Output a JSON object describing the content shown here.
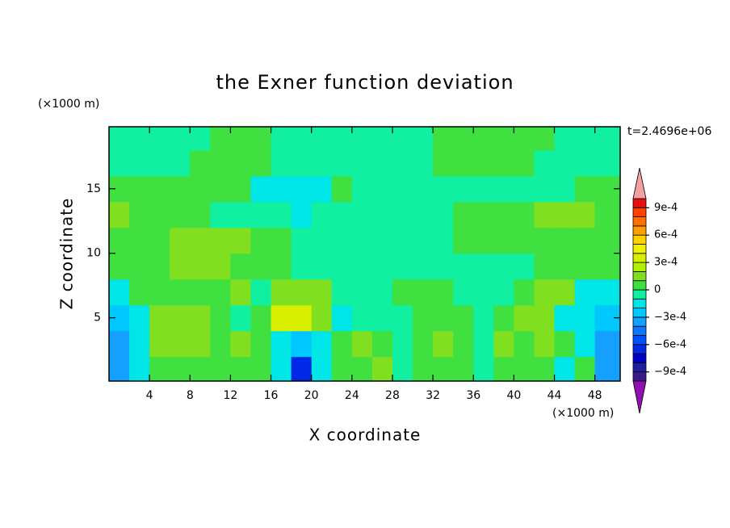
{
  "chart_data": {
    "type": "contour",
    "title": "the Exner function deviation",
    "xlabel": "X coordinate",
    "ylabel": "Z coordinate",
    "x_unit": "(×1000 m)",
    "y_unit": "(×1000 m)",
    "time_label": "t=2.4696e+06",
    "xlim": [
      0,
      50.5
    ],
    "ylim": [
      0.1,
      19.8
    ],
    "xticks": [
      4,
      8,
      12,
      16,
      20,
      24,
      28,
      32,
      36,
      40,
      44,
      48
    ],
    "yticks": [
      5,
      10,
      15
    ],
    "x": [
      1,
      3,
      5,
      7,
      9,
      11,
      13,
      15,
      17,
      19,
      21,
      23,
      25,
      27,
      29,
      31,
      33,
      35,
      37,
      39,
      41,
      43,
      45,
      47,
      49
    ],
    "y": [
      1,
      3,
      5,
      7,
      9,
      11,
      13,
      15,
      17,
      19
    ],
    "z": [
      [
        -0.00035,
        -0.00015,
        5e-05,
        5e-05,
        5e-05,
        5e-05,
        5e-05,
        5e-05,
        -0.00015,
        -0.0007,
        -0.00015,
        5e-05,
        5e-05,
        0.00015,
        -5e-05,
        5e-05,
        5e-05,
        5e-05,
        -5e-05,
        5e-05,
        5e-05,
        5e-05,
        -0.00015,
        5e-05,
        -0.00035
      ],
      [
        -0.00035,
        -0.00015,
        0.00015,
        0.00015,
        0.00015,
        5e-05,
        0.00015,
        5e-05,
        -0.00015,
        -0.00025,
        -0.00015,
        5e-05,
        0.00015,
        5e-05,
        -5e-05,
        5e-05,
        0.00015,
        5e-05,
        -5e-05,
        0.00015,
        5e-05,
        0.00015,
        5e-05,
        -0.00015,
        -0.00035
      ],
      [
        -0.00025,
        -0.00015,
        0.00015,
        0.00015,
        0.00015,
        5e-05,
        -5e-05,
        5e-05,
        0.00035,
        0.00035,
        0.00015,
        -0.00015,
        -5e-05,
        -5e-05,
        -5e-05,
        5e-05,
        5e-05,
        5e-05,
        -5e-05,
        5e-05,
        0.00015,
        0.00015,
        -0.00015,
        -0.00015,
        -0.00025
      ],
      [
        -0.00015,
        5e-05,
        5e-05,
        5e-05,
        5e-05,
        5e-05,
        0.00015,
        -5e-05,
        0.00015,
        0.00015,
        0.00015,
        -5e-05,
        -5e-05,
        -5e-05,
        5e-05,
        5e-05,
        5e-05,
        -5e-05,
        -5e-05,
        -5e-05,
        5e-05,
        0.00015,
        0.00015,
        -0.00015,
        -0.00015
      ],
      [
        5e-05,
        5e-05,
        5e-05,
        0.00015,
        0.00015,
        0.00015,
        5e-05,
        5e-05,
        5e-05,
        -5e-05,
        -5e-05,
        -5e-05,
        -5e-05,
        -5e-05,
        -5e-05,
        -5e-05,
        -5e-05,
        -5e-05,
        -5e-05,
        -5e-05,
        -5e-05,
        5e-05,
        5e-05,
        5e-05,
        5e-05
      ],
      [
        5e-05,
        5e-05,
        5e-05,
        0.00015,
        0.00015,
        0.00015,
        0.00015,
        5e-05,
        5e-05,
        -5e-05,
        -5e-05,
        -5e-05,
        -5e-05,
        -5e-05,
        -5e-05,
        -5e-05,
        -5e-05,
        5e-05,
        5e-05,
        5e-05,
        5e-05,
        5e-05,
        5e-05,
        5e-05,
        5e-05
      ],
      [
        0.00015,
        5e-05,
        5e-05,
        5e-05,
        5e-05,
        -5e-05,
        -5e-05,
        -5e-05,
        -5e-05,
        -0.00015,
        -5e-05,
        -5e-05,
        -5e-05,
        -5e-05,
        -5e-05,
        -5e-05,
        -5e-05,
        5e-05,
        5e-05,
        5e-05,
        5e-05,
        0.00015,
        0.00015,
        0.00015,
        5e-05
      ],
      [
        5e-05,
        5e-05,
        5e-05,
        5e-05,
        5e-05,
        5e-05,
        5e-05,
        -0.00015,
        -0.00015,
        -0.00015,
        -0.00015,
        5e-05,
        -5e-05,
        -5e-05,
        -5e-05,
        -5e-05,
        -5e-05,
        -5e-05,
        -5e-05,
        -5e-05,
        -5e-05,
        -5e-05,
        -5e-05,
        5e-05,
        5e-05
      ],
      [
        -5e-05,
        -5e-05,
        -5e-05,
        -5e-05,
        5e-05,
        5e-05,
        5e-05,
        5e-05,
        -5e-05,
        -5e-05,
        -5e-05,
        -5e-05,
        -5e-05,
        -5e-05,
        -5e-05,
        -5e-05,
        5e-05,
        5e-05,
        5e-05,
        5e-05,
        5e-05,
        -5e-05,
        -5e-05,
        -5e-05,
        -5e-05
      ],
      [
        -5e-05,
        -5e-05,
        -5e-05,
        -5e-05,
        -5e-05,
        5e-05,
        5e-05,
        5e-05,
        -5e-05,
        -5e-05,
        -5e-05,
        -5e-05,
        -5e-05,
        -5e-05,
        -5e-05,
        -5e-05,
        5e-05,
        5e-05,
        5e-05,
        5e-05,
        5e-05,
        5e-05,
        -5e-05,
        -5e-05,
        -5e-05
      ]
    ],
    "colorbar": {
      "levels": [
        -0.001,
        -0.0009,
        -0.0008,
        -0.0007,
        -0.0006,
        -0.0005,
        -0.0004,
        -0.0003,
        -0.0002,
        -0.0001,
        0,
        0.0001,
        0.0002,
        0.0003,
        0.0004,
        0.0005,
        0.0006,
        0.0007,
        0.0008,
        0.0009,
        0.001
      ],
      "colors": [
        "#3c1a8c",
        "#1e1e9e",
        "#0000c8",
        "#0028e6",
        "#0050ff",
        "#0a78ff",
        "#14a0ff",
        "#00c8ff",
        "#00e6e6",
        "#10f0a0",
        "#40e040",
        "#80e020",
        "#b0f000",
        "#d8f000",
        "#f0f000",
        "#ffd200",
        "#ffa000",
        "#ff7000",
        "#ff4000",
        "#e61010"
      ],
      "under_color": "#9010b0",
      "over_color": "#f4a0a0",
      "ticks": [
        {
          "value": 0.0009,
          "label": "9e-4"
        },
        {
          "value": 0.0006,
          "label": "6e-4"
        },
        {
          "value": 0.0003,
          "label": "3e-4"
        },
        0,
        {
          "value": -0.0003,
          "label": "−3e-4"
        },
        {
          "value": -0.0006,
          "label": "−6e-4"
        },
        {
          "value": -0.0009,
          "label": "−9e-4"
        }
      ]
    }
  }
}
